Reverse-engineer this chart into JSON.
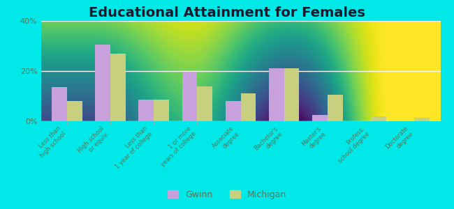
{
  "title": "Educational Attainment for Females",
  "categories": [
    "Less than\nhigh school",
    "High school\nor equiv.",
    "Less than\n1 year of college",
    "1 or more\nyears of college",
    "Associate\ndegree",
    "Bachelor's\ndegree",
    "Master's\ndegree",
    "Profess.\nschool degree",
    "Doctorate\ndegree"
  ],
  "gwinn_values": [
    13.5,
    30.5,
    8.5,
    19.5,
    8.0,
    21.0,
    2.5,
    0.0,
    0.0
  ],
  "michigan_values": [
    8.0,
    27.0,
    8.5,
    14.0,
    11.0,
    21.0,
    10.5,
    2.0,
    1.5
  ],
  "gwinn_color": "#c8a0dc",
  "michigan_color": "#c8d080",
  "ylim": [
    0,
    40
  ],
  "yticks": [
    0,
    20,
    40
  ],
  "ytick_labels": [
    "0%",
    "20%",
    "40%"
  ],
  "background_top": "#f5faf0",
  "background_bottom": "#e8f4d8",
  "outer_background": "#00e8e8",
  "title_fontsize": 14,
  "legend_labels": [
    "Gwinn",
    "Michigan"
  ],
  "bar_width": 0.35,
  "grid_color": "#d0e8c0",
  "axis_color": "#aaaaaa",
  "tick_color": "#557755"
}
